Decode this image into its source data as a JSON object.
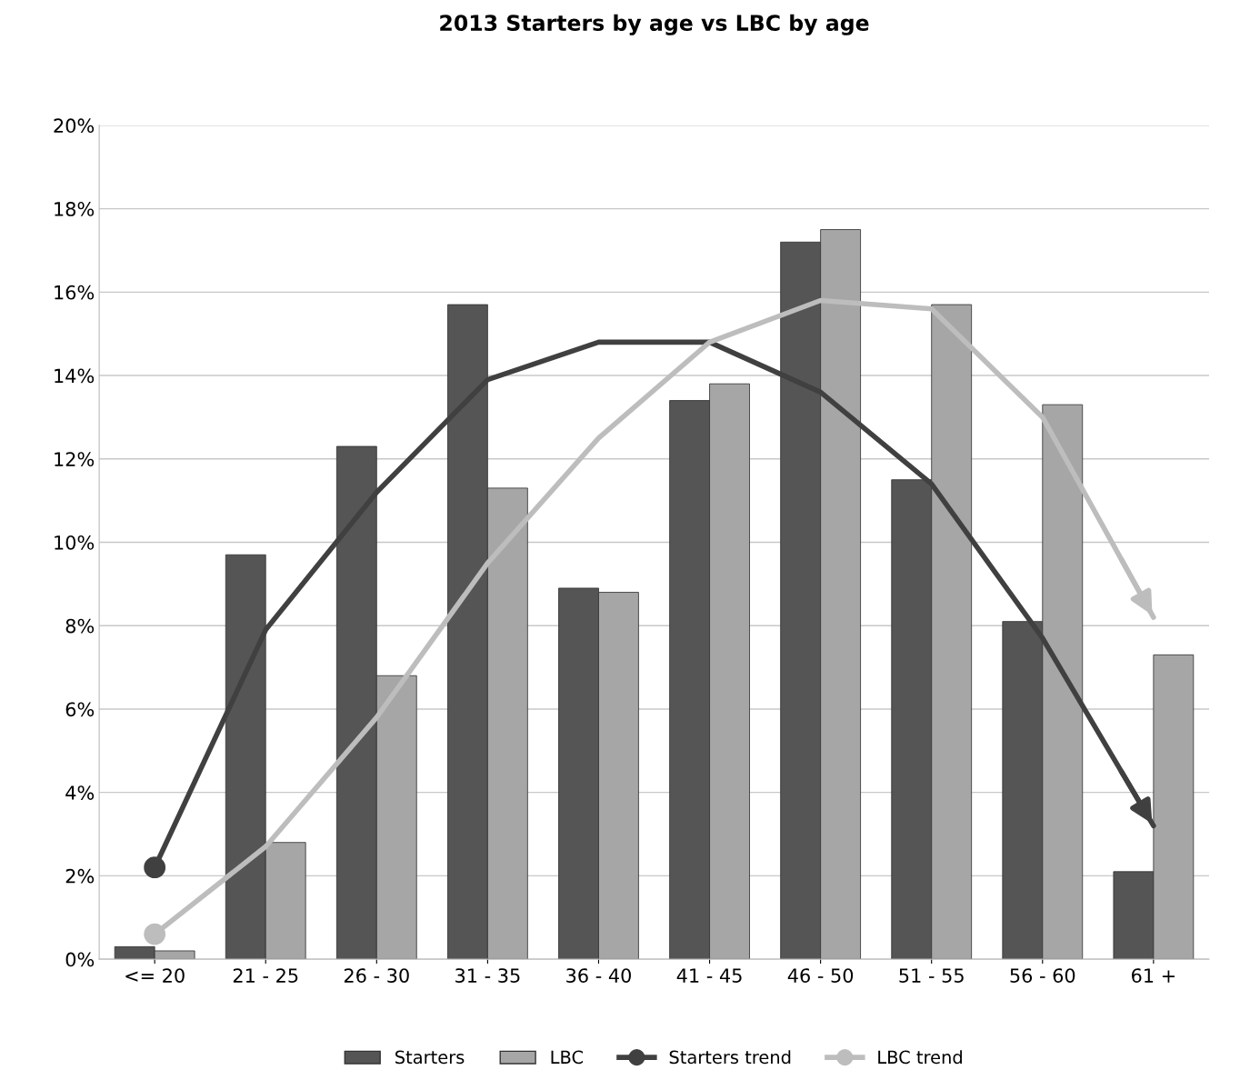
{
  "chart_data": {
    "type": "bar",
    "title": "2013 Starters by age vs LBC by age",
    "categories": [
      "<= 20",
      "21 - 25",
      "26 - 30",
      "31 - 35",
      "36 - 40",
      "41 - 45",
      "46 - 50",
      "51 - 55",
      "56 - 60",
      "61 +"
    ],
    "series": [
      {
        "name": "Starters",
        "color": "#555555",
        "values": [
          0.3,
          9.7,
          12.3,
          15.7,
          8.9,
          13.4,
          17.2,
          11.5,
          8.1,
          2.1
        ]
      },
      {
        "name": "LBC",
        "color": "#a6a6a6",
        "values": [
          0.2,
          2.8,
          6.8,
          11.3,
          8.8,
          13.8,
          17.5,
          15.7,
          13.3,
          7.3
        ]
      },
      {
        "name": "Starters trend",
        "type": "line",
        "color": "#404040",
        "values": [
          2.2,
          7.9,
          11.2,
          13.9,
          14.8,
          14.8,
          13.6,
          11.4,
          7.7,
          3.2
        ]
      },
      {
        "name": "LBC trend",
        "type": "line",
        "color": "#bdbdbd",
        "values": [
          0.6,
          2.7,
          5.8,
          9.5,
          12.5,
          14.8,
          15.8,
          15.6,
          13.0,
          8.2
        ]
      }
    ],
    "ylim": [
      0,
      20
    ],
    "yticks": [
      {
        "value": 0,
        "label": "0%"
      },
      {
        "value": 2,
        "label": "2%"
      },
      {
        "value": 4,
        "label": "4%"
      },
      {
        "value": 6,
        "label": "6%"
      },
      {
        "value": 8,
        "label": "8%"
      },
      {
        "value": 10,
        "label": "10%"
      },
      {
        "value": 12,
        "label": "12%"
      },
      {
        "value": 14,
        "label": "14%"
      },
      {
        "value": 16,
        "label": "16%"
      },
      {
        "value": 18,
        "label": "18%"
      },
      {
        "value": 20,
        "label": "20%"
      }
    ],
    "grid": "y",
    "legend": "bottom"
  }
}
